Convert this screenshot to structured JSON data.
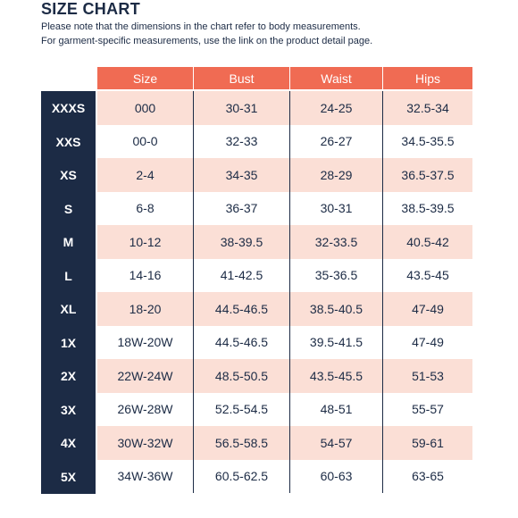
{
  "title": "SIZE CHART",
  "note_line1": "Please note that the dimensions in the chart refer to body measurements.",
  "note_line2": "For garment-specific measurements, use the link on the product detail page.",
  "headers": [
    "Size",
    "Bust",
    "Waist",
    "Hips"
  ],
  "colors": {
    "header_bg": "#f06b53",
    "sidebar_bg": "#1c2b45",
    "shaded_row": "#fbdfd6",
    "text": "#1c2b45"
  },
  "rows": [
    {
      "label": "XXXS",
      "size": "000",
      "bust": "30-31",
      "waist": "24-25",
      "hips": "32.5-34"
    },
    {
      "label": "XXS",
      "size": "00-0",
      "bust": "32-33",
      "waist": "26-27",
      "hips": "34.5-35.5"
    },
    {
      "label": "XS",
      "size": "2-4",
      "bust": "34-35",
      "waist": "28-29",
      "hips": "36.5-37.5"
    },
    {
      "label": "S",
      "size": "6-8",
      "bust": "36-37",
      "waist": "30-31",
      "hips": "38.5-39.5"
    },
    {
      "label": "M",
      "size": "10-12",
      "bust": "38-39.5",
      "waist": "32-33.5",
      "hips": "40.5-42"
    },
    {
      "label": "L",
      "size": "14-16",
      "bust": "41-42.5",
      "waist": "35-36.5",
      "hips": "43.5-45"
    },
    {
      "label": "XL",
      "size": "18-20",
      "bust": "44.5-46.5",
      "waist": "38.5-40.5",
      "hips": "47-49"
    },
    {
      "label": "1X",
      "size": "18W-20W",
      "bust": "44.5-46.5",
      "waist": "39.5-41.5",
      "hips": "47-49"
    },
    {
      "label": "2X",
      "size": "22W-24W",
      "bust": "48.5-50.5",
      "waist": "43.5-45.5",
      "hips": "51-53"
    },
    {
      "label": "3X",
      "size": "26W-28W",
      "bust": "52.5-54.5",
      "waist": "48-51",
      "hips": "55-57"
    },
    {
      "label": "4X",
      "size": "30W-32W",
      "bust": "56.5-58.5",
      "waist": "54-57",
      "hips": "59-61"
    },
    {
      "label": "5X",
      "size": "34W-36W",
      "bust": "60.5-62.5",
      "waist": "60-63",
      "hips": "63-65"
    }
  ]
}
